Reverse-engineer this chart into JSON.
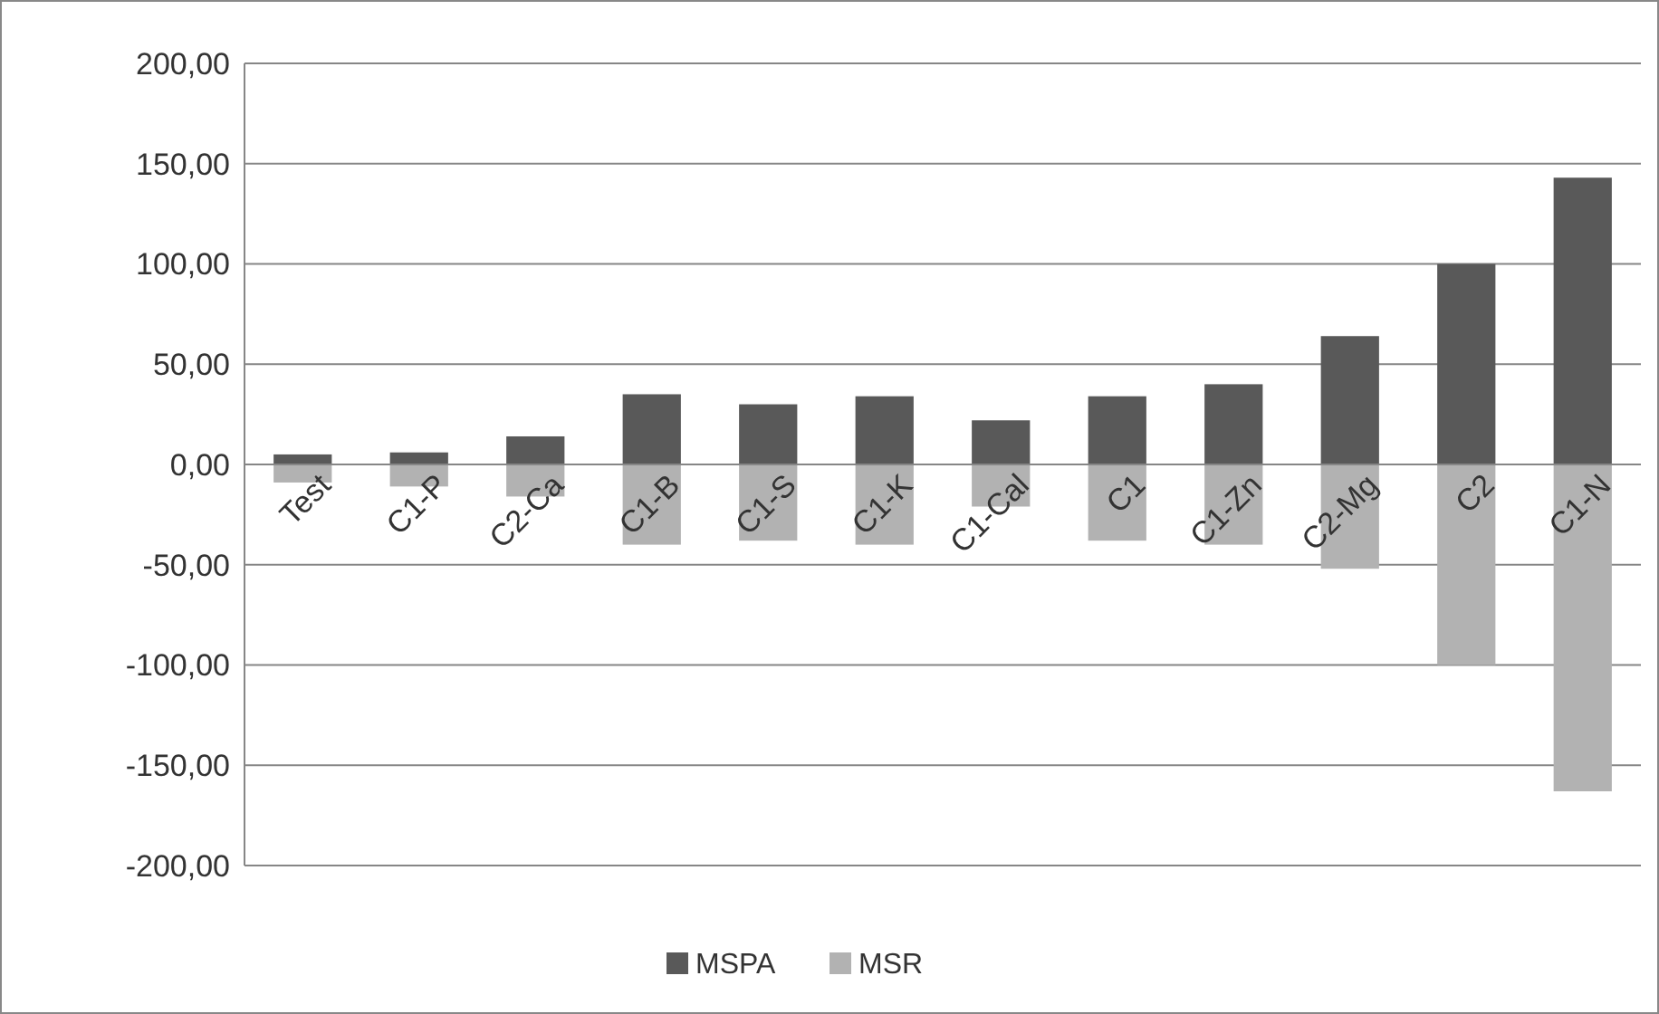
{
  "chart_data": {
    "type": "bar",
    "stacked": true,
    "categories": [
      "Test",
      "C1-P",
      "C2-Ca",
      "C1-B",
      "C1-S",
      "C1-K",
      "C1-Cal",
      "C1",
      "C1-Zn",
      "C2-Mg",
      "C2",
      "C1-N"
    ],
    "series": [
      {
        "name": "MSPA",
        "color": "#595959",
        "values": [
          5,
          6,
          14,
          35,
          30,
          34,
          22,
          34,
          40,
          64,
          100,
          143
        ]
      },
      {
        "name": "MSR",
        "color": "#b2b2b2",
        "values": [
          -9,
          -11,
          -16,
          -40,
          -38,
          -40,
          -21,
          -38,
          -40,
          -52,
          -100,
          -163
        ]
      }
    ],
    "ylim": [
      -200,
      200
    ],
    "yticks": [
      {
        "value": -200,
        "label": "-200,00"
      },
      {
        "value": -150,
        "label": "-150,00"
      },
      {
        "value": -100,
        "label": "-100,00"
      },
      {
        "value": -50,
        "label": "-50,00"
      },
      {
        "value": 0,
        "label": "0,00"
      },
      {
        "value": 50,
        "label": "50,00"
      },
      {
        "value": 100,
        "label": "100,00"
      },
      {
        "value": 150,
        "label": "150,00"
      },
      {
        "value": 200,
        "label": "200,00"
      }
    ],
    "grid": "y",
    "legend": "bottom"
  }
}
